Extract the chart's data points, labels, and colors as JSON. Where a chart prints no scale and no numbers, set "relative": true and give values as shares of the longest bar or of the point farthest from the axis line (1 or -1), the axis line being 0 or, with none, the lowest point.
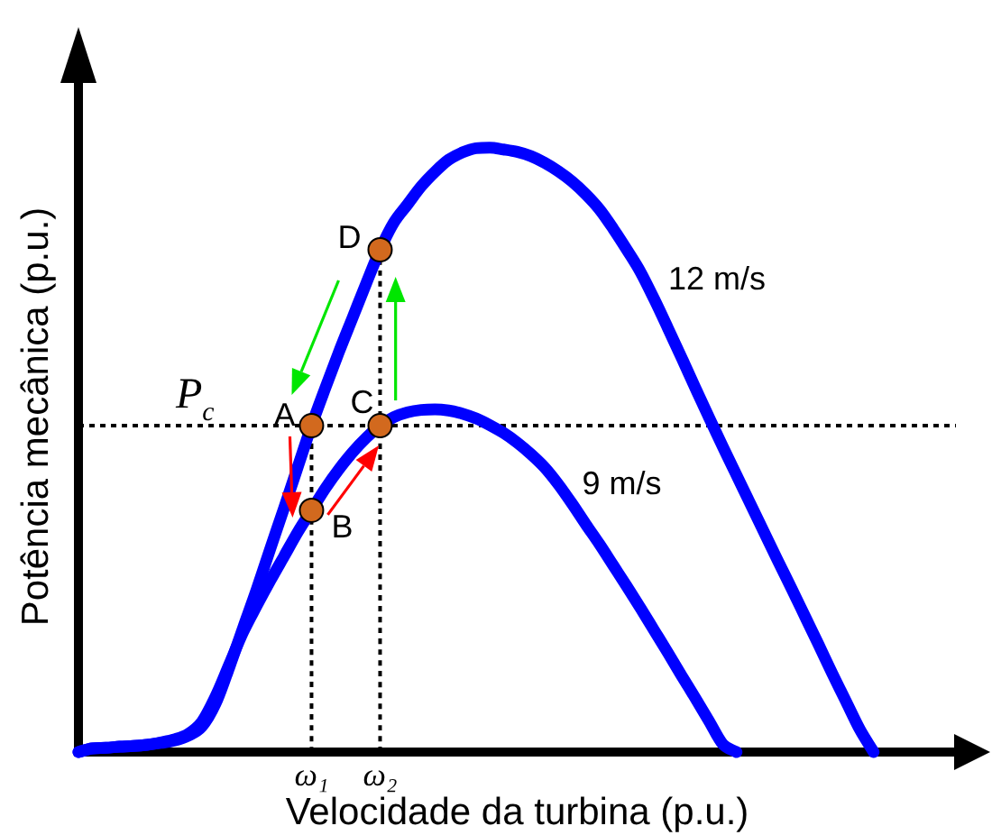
{
  "chart_data": {
    "type": "line",
    "relative": true,
    "xlabel": "Velocidade da turbina (p.u.)",
    "ylabel": "Potência mecânica (p.u.)",
    "categories": [
      null,
      null,
      null,
      null,
      null,
      null,
      null,
      null,
      null,
      null,
      null,
      null,
      null,
      null,
      null,
      null,
      null,
      "ω₁",
      null,
      null,
      null,
      null,
      "ω₂",
      null,
      null,
      null,
      null,
      null,
      null,
      null,
      null,
      null,
      null,
      null,
      null,
      null,
      null,
      null,
      null,
      null,
      null,
      null,
      null,
      null,
      null,
      null,
      null,
      null,
      null,
      null,
      null,
      null,
      null,
      null,
      null,
      null,
      null,
      null,
      null,
      null,
      null,
      null,
      null,
      null,
      null
    ],
    "series": [
      {
        "name": "12 m/s",
        "color": "#0000ff",
        "values": [
          0,
          0.006,
          0.007,
          0.009,
          0.01,
          0.012,
          0.015,
          0.019,
          0.027,
          0.042,
          0.08,
          0.14,
          0.205,
          0.269,
          0.337,
          0.404,
          0.472,
          0.54,
          0.602,
          0.662,
          0.719,
          0.776,
          0.831,
          0.876,
          0.906,
          0.936,
          0.96,
          0.98,
          0.992,
          0.999,
          1,
          0.997,
          0.993,
          0.986,
          0.975,
          0.961,
          0.944,
          0.923,
          0.898,
          0.866,
          0.831,
          0.794,
          0.749,
          0.701,
          0.652,
          0.602,
          0.553,
          0.505,
          0.458,
          0.411,
          0.364,
          0.317,
          0.271,
          0.224,
          0.177,
          0.129,
          0.083,
          0.037,
          0,
          null,
          null,
          null,
          null,
          null,
          null
        ]
      },
      {
        "name": "9 m/s",
        "color": "#0000ff",
        "values": [
          0,
          0.006,
          0.007,
          0.009,
          0.01,
          0.012,
          0.016,
          0.021,
          0.03,
          0.05,
          0.092,
          0.145,
          0.198,
          0.242,
          0.284,
          0.324,
          0.364,
          0.4,
          0.436,
          0.468,
          0.496,
          0.52,
          0.54,
          0.554,
          0.562,
          0.566,
          0.567,
          0.565,
          0.56,
          0.552,
          0.541,
          0.528,
          0.512,
          0.493,
          0.471,
          0.443,
          0.411,
          0.377,
          0.344,
          0.309,
          0.274,
          0.238,
          0.201,
          0.164,
          0.126,
          0.089,
          0.051,
          0.013,
          0,
          null,
          null,
          null,
          null,
          null,
          null,
          null,
          null,
          null,
          null,
          null,
          null,
          null,
          null,
          null,
          null
        ]
      },
      {
        "type": "line",
        "x": [
          "ω₁",
          "ω₁"
        ],
        "values": [
          0,
          0.54
        ],
        "color": "#000000",
        "line_style": "dashed"
      },
      {
        "type": "line",
        "x": [
          "ω₂",
          "ω₂"
        ],
        "values": [
          0,
          0.831
        ],
        "color": "#000000",
        "line_style": "dashed"
      },
      {
        "type": "scatter",
        "x": [
          "ω₁",
          "ω₁",
          "ω₂",
          "ω₂"
        ],
        "values": [
          0.54,
          0.4,
          0.54,
          0.831
        ],
        "color": "#d2691e",
        "marker": "circle"
      }
    ],
    "ref_lines": [
      {
        "axis": "y",
        "value": 0.54,
        "label": "P$_{c}$",
        "color": "#000000",
        "line_style": "dashed"
      }
    ],
    "annotations": [
      {
        "text": "A",
        "x": "ω₁",
        "y": 0.54
      },
      {
        "text": "B",
        "x": "ω₁",
        "y": 0.4
      },
      {
        "text": "C",
        "x": "ω₂",
        "y": 0.54
      },
      {
        "text": "D",
        "x": "ω₂",
        "y": 0.831
      }
    ]
  }
}
